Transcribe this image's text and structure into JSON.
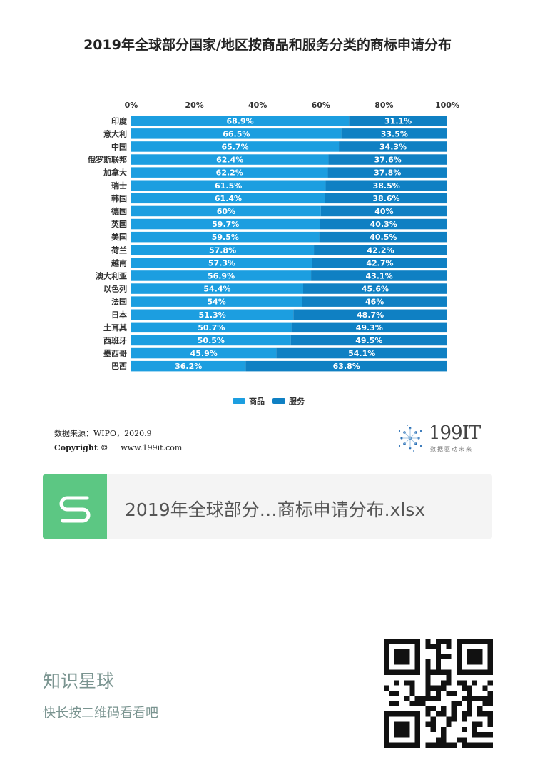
{
  "chart_data": {
    "type": "bar",
    "stacked": true,
    "orientation": "horizontal",
    "title": "2019年全球部分国家/地区按商品和服务分类的商标申请分布",
    "categories": [
      "印度",
      "意大利",
      "中国",
      "俄罗斯联邦",
      "加拿大",
      "瑞士",
      "韩国",
      "德国",
      "英国",
      "美国",
      "荷兰",
      "越南",
      "澳大利亚",
      "以色列",
      "法国",
      "日本",
      "土耳其",
      "西班牙",
      "墨西哥",
      "巴西"
    ],
    "series": [
      {
        "name": "商品",
        "color": "#1c9ee0",
        "values": [
          68.9,
          66.5,
          65.7,
          62.4,
          62.2,
          61.5,
          61.4,
          60,
          59.7,
          59.5,
          57.8,
          57.3,
          56.9,
          54.4,
          54,
          51.3,
          50.7,
          50.5,
          45.9,
          36.2
        ],
        "labels": [
          "68.9%",
          "66.5%",
          "65.7%",
          "62.4%",
          "62.2%",
          "61.5%",
          "61.4%",
          "60%",
          "59.7%",
          "59.5%",
          "57.8%",
          "57.3%",
          "56.9%",
          "54.4%",
          "54%",
          "51.3%",
          "50.7%",
          "50.5%",
          "45.9%",
          "36.2%"
        ]
      },
      {
        "name": "服务",
        "color": "#0f80c3",
        "values": [
          31.1,
          33.5,
          34.3,
          37.6,
          37.8,
          38.5,
          38.6,
          40,
          40.3,
          40.5,
          42.2,
          42.7,
          43.1,
          45.6,
          46,
          48.7,
          49.3,
          49.5,
          54.1,
          63.8
        ],
        "labels": [
          "31.1%",
          "33.5%",
          "34.3%",
          "37.6%",
          "37.8%",
          "38.5%",
          "38.6%",
          "40%",
          "40.3%",
          "40.5%",
          "42.2%",
          "42.7%",
          "43.1%",
          "45.6%",
          "46%",
          "48.7%",
          "49.3%",
          "49.5%",
          "54.1%",
          "63.8%"
        ]
      }
    ],
    "xlim": [
      0,
      100
    ],
    "xticks": [
      "0%",
      "20%",
      "40%",
      "60%",
      "80%",
      "100%"
    ],
    "legend_position": "bottom"
  },
  "source": {
    "line1": "数据来源：WIPO，2020.9",
    "line2_label": "Copyright ©",
    "line2_url": "www.199it.com"
  },
  "logo": {
    "name": "199IT",
    "tagline": "数据驱动未来"
  },
  "file_card": {
    "icon": "spreadsheet-s-icon",
    "name": "2019年全球部分…商标申请分布.xlsx"
  },
  "footer": {
    "title": "知识星球",
    "subtitle": "快长按二维码看看吧",
    "qr_icon": "qr-code-icon"
  }
}
